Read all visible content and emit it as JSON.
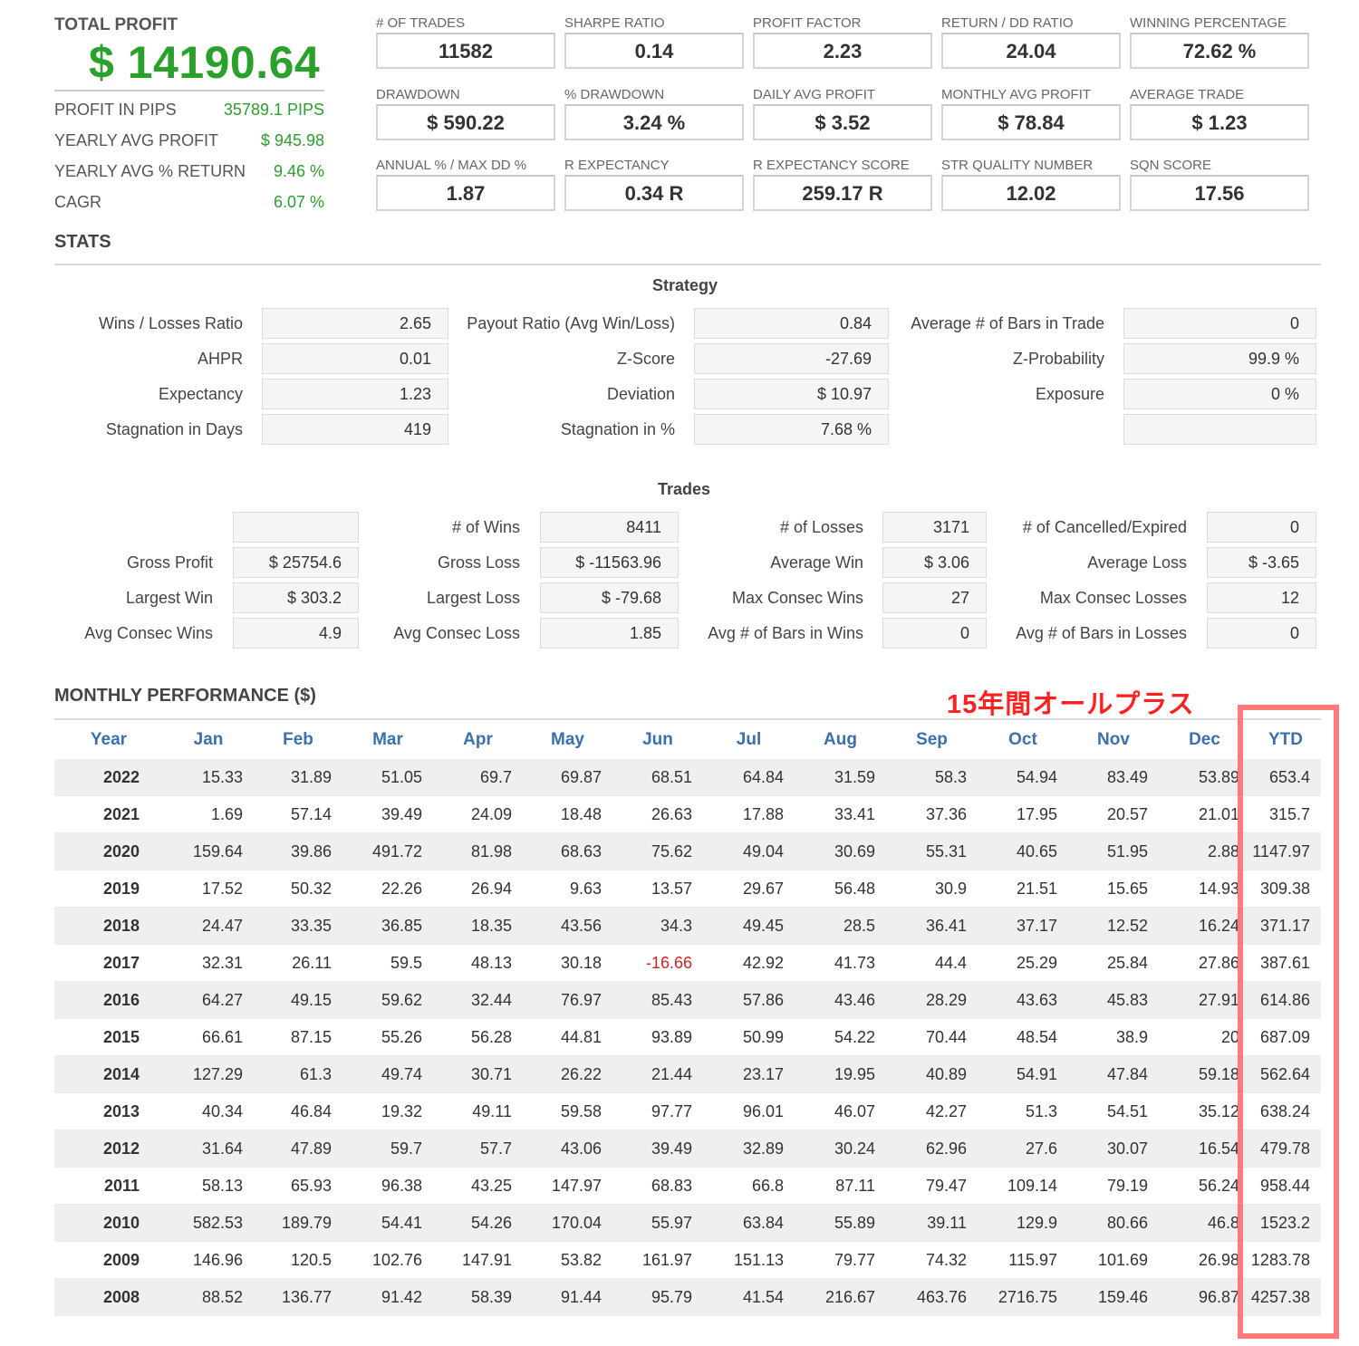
{
  "summary": {
    "total_profit_label": "TOTAL PROFIT",
    "total_profit_value": "$ 14190.64",
    "rows": [
      {
        "label": "PROFIT IN PIPS",
        "value": "35789.1 PIPS"
      },
      {
        "label": "YEARLY AVG PROFIT",
        "value": "$ 945.98"
      },
      {
        "label": "YEARLY AVG % RETURN",
        "value": "9.46 %"
      },
      {
        "label": "CAGR",
        "value": "6.07 %"
      }
    ]
  },
  "metrics": [
    [
      {
        "label": "# OF TRADES",
        "value": "11582"
      },
      {
        "label": "SHARPE RATIO",
        "value": "0.14"
      },
      {
        "label": "PROFIT FACTOR",
        "value": "2.23"
      },
      {
        "label": "RETURN / DD RATIO",
        "value": "24.04"
      },
      {
        "label": "WINNING PERCENTAGE",
        "value": "72.62 %"
      }
    ],
    [
      {
        "label": "DRAWDOWN",
        "value": "$ 590.22"
      },
      {
        "label": "% DRAWDOWN",
        "value": "3.24 %"
      },
      {
        "label": "DAILY AVG PROFIT",
        "value": "$ 3.52"
      },
      {
        "label": "MONTHLY AVG PROFIT",
        "value": "$ 78.84"
      },
      {
        "label": "AVERAGE TRADE",
        "value": "$ 1.23"
      }
    ],
    [
      {
        "label": "ANNUAL % / MAX DD %",
        "value": "1.87"
      },
      {
        "label": "R EXPECTANCY",
        "value": "0.34 R"
      },
      {
        "label": "R EXPECTANCY SCORE",
        "value": "259.17 R"
      },
      {
        "label": "STR QUALITY NUMBER",
        "value": "12.02"
      },
      {
        "label": "SQN SCORE",
        "value": "17.56"
      }
    ]
  ],
  "stats_title": "STATS",
  "strategy": {
    "title": "Strategy",
    "rows": [
      [
        {
          "label": "Wins / Losses Ratio",
          "value": "2.65"
        },
        {
          "label": "Payout Ratio (Avg Win/Loss)",
          "value": "0.84"
        },
        {
          "label": "Average # of Bars in Trade",
          "value": "0"
        }
      ],
      [
        {
          "label": "AHPR",
          "value": "0.01"
        },
        {
          "label": "Z-Score",
          "value": "-27.69"
        },
        {
          "label": "Z-Probability",
          "value": "99.9 %"
        }
      ],
      [
        {
          "label": "Expectancy",
          "value": "1.23"
        },
        {
          "label": "Deviation",
          "value": "$ 10.97"
        },
        {
          "label": "Exposure",
          "value": "0 %"
        }
      ],
      [
        {
          "label": "Stagnation in Days",
          "value": "419"
        },
        {
          "label": "Stagnation in %",
          "value": "7.68 %"
        },
        {
          "label": "",
          "value": ""
        }
      ]
    ]
  },
  "trades": {
    "title": "Trades",
    "rows": [
      [
        {
          "label": "",
          "value": ""
        },
        {
          "label": "# of Wins",
          "value": "8411"
        },
        {
          "label": "# of Losses",
          "value": "3171"
        },
        {
          "label": "# of Cancelled/Expired",
          "value": "0"
        }
      ],
      [
        {
          "label": "Gross Profit",
          "value": "$ 25754.6"
        },
        {
          "label": "Gross Loss",
          "value": "$ -11563.96"
        },
        {
          "label": "Average Win",
          "value": "$ 3.06"
        },
        {
          "label": "Average Loss",
          "value": "$ -3.65"
        }
      ],
      [
        {
          "label": "Largest Win",
          "value": "$ 303.2"
        },
        {
          "label": "Largest Loss",
          "value": "$ -79.68"
        },
        {
          "label": "Max Consec Wins",
          "value": "27"
        },
        {
          "label": "Max Consec Losses",
          "value": "12"
        }
      ],
      [
        {
          "label": "Avg Consec Wins",
          "value": "4.9"
        },
        {
          "label": "Avg Consec Loss",
          "value": "1.85"
        },
        {
          "label": "Avg # of Bars in Wins",
          "value": "0"
        },
        {
          "label": "Avg # of Bars in Losses",
          "value": "0"
        }
      ]
    ]
  },
  "monthly": {
    "title": "MONTHLY PERFORMANCE ($)",
    "note": "15年間オールプラス",
    "columns": [
      "Year",
      "Jan",
      "Feb",
      "Mar",
      "Apr",
      "May",
      "Jun",
      "Jul",
      "Aug",
      "Sep",
      "Oct",
      "Nov",
      "Dec",
      "YTD"
    ],
    "rows": [
      [
        "2022",
        "15.33",
        "31.89",
        "51.05",
        "69.7",
        "69.87",
        "68.51",
        "64.84",
        "31.59",
        "58.3",
        "54.94",
        "83.49",
        "53.89",
        "653.4"
      ],
      [
        "2021",
        "1.69",
        "57.14",
        "39.49",
        "24.09",
        "18.48",
        "26.63",
        "17.88",
        "33.41",
        "37.36",
        "17.95",
        "20.57",
        "21.01",
        "315.7"
      ],
      [
        "2020",
        "159.64",
        "39.86",
        "491.72",
        "81.98",
        "68.63",
        "75.62",
        "49.04",
        "30.69",
        "55.31",
        "40.65",
        "51.95",
        "2.88",
        "1147.97"
      ],
      [
        "2019",
        "17.52",
        "50.32",
        "22.26",
        "26.94",
        "9.63",
        "13.57",
        "29.67",
        "56.48",
        "30.9",
        "21.51",
        "15.65",
        "14.93",
        "309.38"
      ],
      [
        "2018",
        "24.47",
        "33.35",
        "36.85",
        "18.35",
        "43.56",
        "34.3",
        "49.45",
        "28.5",
        "36.41",
        "37.17",
        "12.52",
        "16.24",
        "371.17"
      ],
      [
        "2017",
        "32.31",
        "26.11",
        "59.5",
        "48.13",
        "30.18",
        "-16.66",
        "42.92",
        "41.73",
        "44.4",
        "25.29",
        "25.84",
        "27.86",
        "387.61"
      ],
      [
        "2016",
        "64.27",
        "49.15",
        "59.62",
        "32.44",
        "76.97",
        "85.43",
        "57.86",
        "43.46",
        "28.29",
        "43.63",
        "45.83",
        "27.91",
        "614.86"
      ],
      [
        "2015",
        "66.61",
        "87.15",
        "55.26",
        "56.28",
        "44.81",
        "93.89",
        "50.99",
        "54.22",
        "70.44",
        "48.54",
        "38.9",
        "20",
        "687.09"
      ],
      [
        "2014",
        "127.29",
        "61.3",
        "49.74",
        "30.71",
        "26.22",
        "21.44",
        "23.17",
        "19.95",
        "40.89",
        "54.91",
        "47.84",
        "59.18",
        "562.64"
      ],
      [
        "2013",
        "40.34",
        "46.84",
        "19.32",
        "49.11",
        "59.58",
        "97.77",
        "96.01",
        "46.07",
        "42.27",
        "51.3",
        "54.51",
        "35.12",
        "638.24"
      ],
      [
        "2012",
        "31.64",
        "47.89",
        "59.7",
        "57.7",
        "43.06",
        "39.49",
        "32.89",
        "30.24",
        "62.96",
        "27.6",
        "30.07",
        "16.54",
        "479.78"
      ],
      [
        "2011",
        "58.13",
        "65.93",
        "96.38",
        "43.25",
        "147.97",
        "68.83",
        "66.8",
        "87.11",
        "79.47",
        "109.14",
        "79.19",
        "56.24",
        "958.44"
      ],
      [
        "2010",
        "582.53",
        "189.79",
        "54.41",
        "54.26",
        "170.04",
        "55.97",
        "63.84",
        "55.89",
        "39.11",
        "129.9",
        "80.66",
        "46.8",
        "1523.2"
      ],
      [
        "2009",
        "146.96",
        "120.5",
        "102.76",
        "147.91",
        "53.82",
        "161.97",
        "151.13",
        "79.77",
        "74.32",
        "115.97",
        "101.69",
        "26.98",
        "1283.78"
      ],
      [
        "2008",
        "88.52",
        "136.77",
        "91.42",
        "58.39",
        "91.44",
        "95.79",
        "41.54",
        "216.67",
        "463.76",
        "2716.75",
        "159.46",
        "96.87",
        "4257.38"
      ]
    ]
  },
  "colors": {
    "profit_green": "#2aa12a",
    "header_blue": "#3a6fb0",
    "negative_red": "#e02020",
    "highlight_red": "#ff7b7b"
  }
}
